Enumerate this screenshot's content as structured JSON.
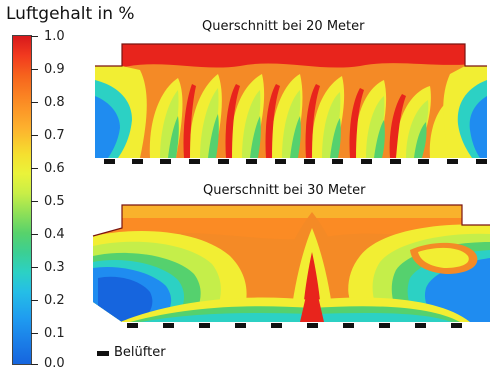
{
  "legend": {
    "title": "Luftgehalt  in  %",
    "ticks": [
      "1.0",
      "0.9",
      "0.8",
      "0.7",
      "0.6",
      "0.5",
      "0.4",
      "0.3",
      "0.2",
      "0.1",
      "0.0"
    ],
    "aerator_label": "Belüfter"
  },
  "sections": [
    {
      "title": "Querschnitt bei 20 Meter"
    },
    {
      "title": "Querschnitt bei 30 Meter"
    }
  ],
  "colors": {
    "red": "#e8241c",
    "orange": "#fb8b24",
    "yellow": "#f2ee33",
    "lime": "#c5ee4a",
    "green": "#55d16e",
    "cyan": "#2cd1c4",
    "blue": "#1f8cf0",
    "deepblue": "#1665de"
  }
}
